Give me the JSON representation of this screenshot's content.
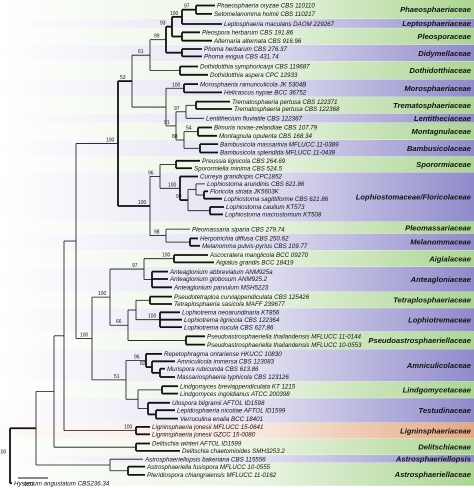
{
  "families": [
    {
      "name": "Phaeosphaeriaceae",
      "color": "#a7d38c"
    },
    {
      "name": "Leptosphaeriaceae",
      "color": "#8a84c8"
    },
    {
      "name": "Pleosporaceae",
      "color": "#a7d38c"
    },
    {
      "name": "Didymellaceae",
      "color": "#8a84c8"
    },
    {
      "name": "Dothidotthiaceae",
      "color": "#a7d38c"
    },
    {
      "name": "Morosphaeriaceae",
      "color": "#8a84c8"
    },
    {
      "name": "Trematosphaeriaceae",
      "color": "#a7d38c"
    },
    {
      "name": "Lentitheciaceae",
      "color": "#8a84c8"
    },
    {
      "name": "Montagnulaceae",
      "color": "#a7d38c"
    },
    {
      "name": "Bambusicolaceae",
      "color": "#8a84c8"
    },
    {
      "name": "Sporormiaceae",
      "color": "#a7d38c"
    },
    {
      "name": "Lophiostomaceae/Floricolaceae",
      "color": "#8a84c8"
    },
    {
      "name": "Pleomassariaceae",
      "color": "#a7d38c"
    },
    {
      "name": "Melanommaceae",
      "color": "#8a84c8"
    },
    {
      "name": "Aigialaceae",
      "color": "#a7d38c"
    },
    {
      "name": "Anteagloniaceae",
      "color": "#8a84c8"
    },
    {
      "name": "Tetraplosphaeriaceae",
      "color": "#a7d38c"
    },
    {
      "name": "Lophiotremaceae",
      "color": "#8a84c8"
    },
    {
      "name": "Pseudoastrosphaeriellaceae",
      "color": "#a7d38c"
    },
    {
      "name": "Amniculicolaceae",
      "color": "#8a84c8"
    },
    {
      "name": "Lindgomycetaceae",
      "color": "#a7d38c"
    },
    {
      "name": "Testudinaceae",
      "color": "#8a84c8"
    },
    {
      "name": "Ligninsphaeriaceae",
      "color": "#e3a47a"
    },
    {
      "name": "Delitschiaceae",
      "color": "#a7d38c"
    },
    {
      "name": "Astrosphaeriellopsis",
      "color": "#8a84c8"
    },
    {
      "name": "Astrosphaeriellaceae",
      "color": "#a7d38c"
    }
  ],
  "taxa": [
    "Phaeosphaeria oryzae CBS 110110",
    "Setomelanomma holmii CBS 110217",
    "Leptosphaeria maculans DAOM 229267",
    "Pleospora herbarum CBS 191.86",
    "Alternaria alternata CBS 916.96",
    "Phoma herbarum CBS 276.37",
    "Phoma exigua CBS 431.74",
    "Dothidotthia symphoricarpi CBS 119687",
    "Dothidotthia aspera CPC 12933",
    "Morosphaeria ramunculicola JK 5304B",
    "Helicascus nypae BCC 36752",
    "Trematosphaeria pertusa CBS 122371",
    "Trematosphaeria pertusa CBS 122368",
    "Lentithecium fluviatile CBS 122367",
    "Bimuria novae-zelandiae CBS 107.79",
    "Montagnula opulenta CBS 168.34",
    "Bambusicola massarinia MFLUCC 11-0389",
    "Bambusicola splendida MFLUCC 11-0439",
    "Preussia lignicola CBS 264.69",
    "Sporormiella minima CBS 524.5",
    "Curreya grandicipis CPC1852",
    "Lophiostoma arundinis CBS 621.86",
    "Floricola striata JK5603K",
    "Lophiostoma sagittiforme CBS 621.86",
    "Lophiostoma caulium KT573",
    "Lophiostoma macrostomum KT508",
    "Pleomassaria siparia CBS 279.74",
    "Herpotrichia diffusa CBS 250.62",
    "Melanomma pulvis-pyrius CBS 109.77",
    "Ascocratera manglicola BCC 09270",
    "Aigialus grandis BCC 18419",
    "Anteaglonium abbreviatum ANM925a",
    "Anteaglonium globosum ANM925.2",
    "Anteaglonium parvulum MSH5223",
    "Pseudotetraploa curviappendiculata CBS 125426",
    "Tetraplosphaeria sasicola MAFF 239677",
    "Lophiotrema neoarundinaria KT856",
    "Lophiotrema lignicola CBS 122364",
    "Lophiotrema nucula CBS 627.86",
    "Pseudoastrosphaeriella thailandensis MFLUCC 11-0144",
    "Pseudoastrosphaeriella thailandensis MFLUCC 10-0553",
    "Repetophragma ontariense HKUCC 10830",
    "Amniculicola immersa CBS 123083",
    "Murispora rubicunda CBS 613.86",
    "Massariosphaeria typhicola CBS 123126",
    "Lindgomyces breviappendiculata KT 1215",
    "Lindgomyces ingoldianus ATCC 200398",
    "Ulospora bilgramii AFTOL ID1598",
    "Lepidosphaeria nicotiae AFTOL ID1599",
    "Verruculina enalia BCC 18401",
    "Ligninsphaeria jonesii MFLUCC 15-0641",
    "Ligninsphaeria jonesii GZCC 15-0080",
    "Delitschia winteri AFTOL ID1599",
    "Delitschia chaetomioides SMH3253.2",
    "Astrosphaeriellopsis bakeriana CBS 115556",
    "Astrosphaeriella fusispora MFLUCC 10-0555",
    "Pteridiospora chiangraiensis MFLUCC 11-0162",
    "Hysterium angustatum CBS236.34"
  ],
  "support": {
    "n97": "97",
    "n100a": "100",
    "n93": "93",
    "n99a": "99",
    "n61": "61",
    "n97b": "97",
    "n53": "53",
    "n100b": "100",
    "n91": "91",
    "n88": "88",
    "n54": "54",
    "n100c": "100",
    "n96a": "96",
    "n100d": "100",
    "n99b": "99",
    "n98": "98",
    "n100e": "100",
    "n100f": "100",
    "n97c": "97",
    "n100g": "100",
    "n100h": "100",
    "n100i": "100",
    "n96b": "96",
    "n66": "66",
    "n82": "82",
    "n51": "51",
    "n100j": "100",
    "n100k": "100"
  },
  "scale_label": "0.02",
  "highlight_color": "#e3a47a"
}
